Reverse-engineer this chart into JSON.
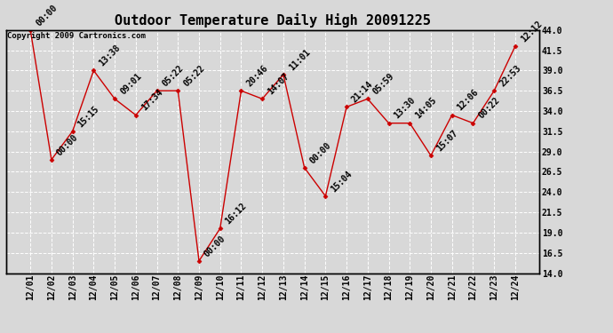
{
  "title": "Outdoor Temperature Daily High 20091225",
  "copyright": "Copyright 2009 Cartronics.com",
  "x_labels": [
    "12/01",
    "12/02",
    "12/03",
    "12/04",
    "12/05",
    "12/06",
    "12/07",
    "12/08",
    "12/09",
    "12/10",
    "12/11",
    "12/12",
    "12/13",
    "12/14",
    "12/15",
    "12/16",
    "12/17",
    "12/18",
    "12/19",
    "12/20",
    "12/21",
    "12/22",
    "12/23",
    "12/24"
  ],
  "y_values": [
    44.0,
    28.0,
    31.5,
    39.0,
    35.5,
    33.5,
    36.5,
    36.5,
    15.5,
    19.5,
    36.5,
    35.5,
    38.5,
    27.0,
    23.5,
    34.5,
    35.5,
    32.5,
    32.5,
    28.5,
    33.5,
    32.5,
    36.5,
    42.0
  ],
  "point_labels": [
    "00:00",
    "00:00",
    "15:15",
    "13:38",
    "09:01",
    "17:34",
    "05:22",
    "05:22",
    "00:00",
    "16:12",
    "20:46",
    "14:07",
    "11:01",
    "00:00",
    "15:04",
    "21:14",
    "05:59",
    "13:30",
    "14:05",
    "15:07",
    "12:06",
    "00:22",
    "22:53",
    "12:12"
  ],
  "ylim": [
    14.0,
    44.0
  ],
  "yticks": [
    14.0,
    16.5,
    19.0,
    21.5,
    24.0,
    26.5,
    29.0,
    31.5,
    34.0,
    36.5,
    39.0,
    41.5,
    44.0
  ],
  "line_color": "#cc0000",
  "marker_color": "#cc0000",
  "background_color": "#d8d8d8",
  "grid_color": "#ffffff",
  "title_fontsize": 11,
  "point_label_fontsize": 7,
  "tick_fontsize": 7,
  "copyright_fontsize": 6.5
}
